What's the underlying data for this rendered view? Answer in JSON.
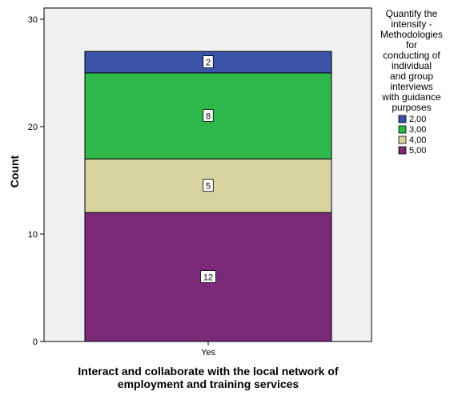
{
  "chart_data": {
    "type": "bar",
    "stacked": true,
    "categories": [
      "Yes"
    ],
    "xlabel": "Interact and collaborate with the local network of employment and training services",
    "ylabel": "Count",
    "ylim": [
      0,
      30
    ],
    "yticks": [
      0,
      10,
      20,
      30
    ],
    "grid": false,
    "legend_title": "Quantify the intensity - Methodologies for conducting of individual and group interviews with guidance purposes",
    "legend_position": "right",
    "series": [
      {
        "name": "2,00",
        "values": [
          2
        ],
        "color": "#3a52a8"
      },
      {
        "name": "3,00",
        "values": [
          8
        ],
        "color": "#2fb84a"
      },
      {
        "name": "4,00",
        "values": [
          5
        ],
        "color": "#d8d49f"
      },
      {
        "name": "5,00",
        "values": [
          12
        ],
        "color": "#7b2a7a"
      }
    ]
  }
}
